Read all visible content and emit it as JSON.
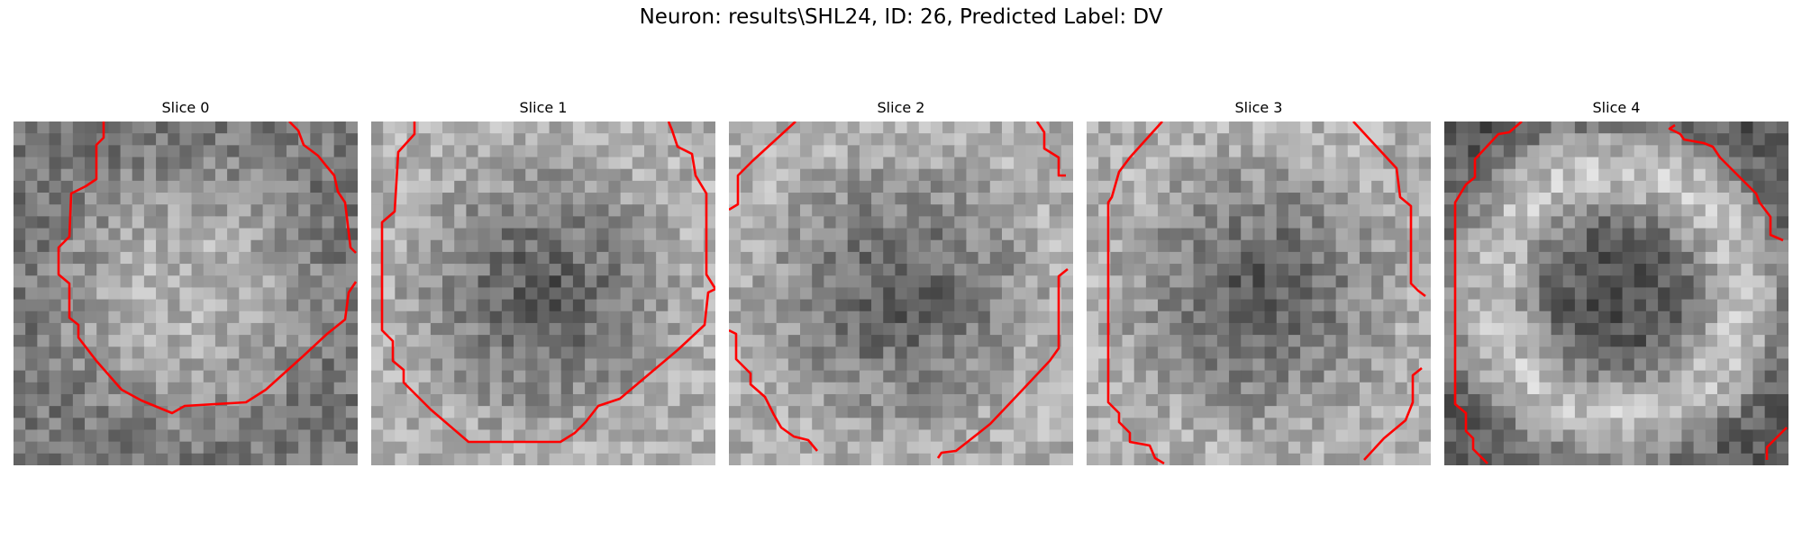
{
  "figure": {
    "title": "Neuron: results\\SHL24, ID: 26, Predicted Label: DV",
    "contour_color": "#ff0000"
  },
  "panels": [
    {
      "title": "Slice 0",
      "pattern": "bright-center"
    },
    {
      "title": "Slice 1",
      "pattern": "dark-center"
    },
    {
      "title": "Slice 2",
      "pattern": "dark-center"
    },
    {
      "title": "Slice 3",
      "pattern": "dark-center"
    },
    {
      "title": "Slice 4",
      "pattern": "bright-ring"
    }
  ]
}
